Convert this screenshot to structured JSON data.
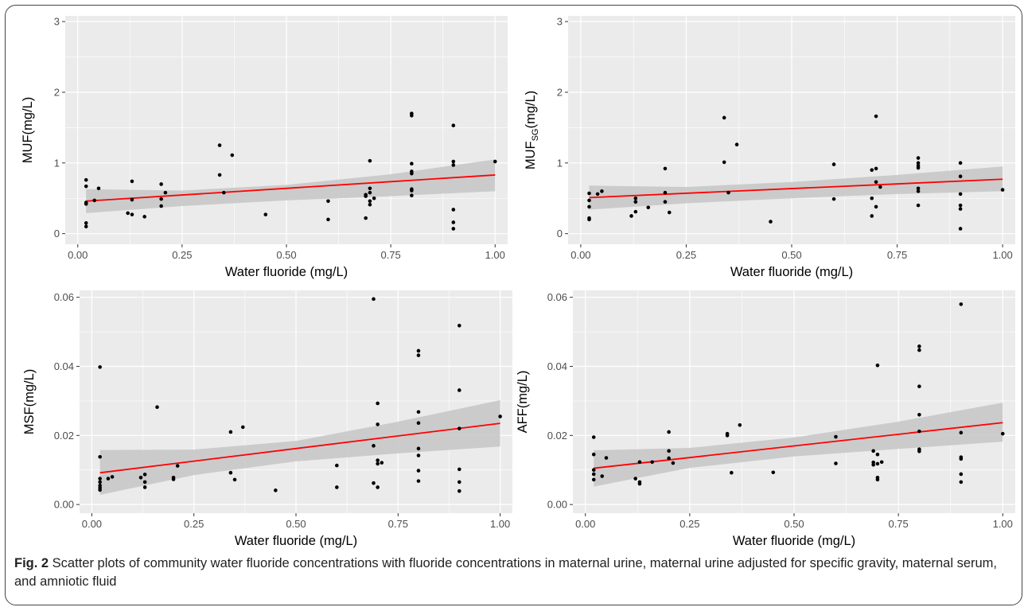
{
  "caption": {
    "label": "Fig. 2",
    "text": " Scatter plots of community water fluoride concentrations with fluoride concentrations in maternal urine, maternal urine adjusted for specific gravity, maternal serum, and amniotic fluid"
  },
  "colors": {
    "panel_bg": "#ebebeb",
    "grid": "#ffffff",
    "point": "#000000",
    "fit_line": "#ff0000",
    "band": "#c8c8c8"
  },
  "chart_data": [
    {
      "type": "scatter",
      "xlabel": "Water fluoride (mg/L)",
      "ylabel": "MUF(mg/L)",
      "xlim": [
        -0.03,
        1.03
      ],
      "ylim": [
        -0.15,
        3.08
      ],
      "xticks": [
        0.0,
        0.25,
        0.5,
        0.75,
        1.0
      ],
      "xtick_labels": [
        "0.00",
        "0.25",
        "0.50",
        "0.75",
        "1.00"
      ],
      "yticks": [
        0,
        1,
        2,
        3
      ],
      "ytick_labels": [
        "0",
        "1",
        "2",
        "3"
      ],
      "grid": true,
      "points": [
        [
          0.02,
          0.76
        ],
        [
          0.02,
          0.67
        ],
        [
          0.02,
          0.44
        ],
        [
          0.02,
          0.42
        ],
        [
          0.02,
          0.15
        ],
        [
          0.02,
          0.1
        ],
        [
          0.04,
          0.47
        ],
        [
          0.05,
          0.64
        ],
        [
          0.12,
          0.29
        ],
        [
          0.13,
          0.74
        ],
        [
          0.13,
          0.48
        ],
        [
          0.13,
          0.27
        ],
        [
          0.16,
          0.24
        ],
        [
          0.2,
          0.7
        ],
        [
          0.2,
          0.49
        ],
        [
          0.2,
          0.39
        ],
        [
          0.21,
          0.58
        ],
        [
          0.34,
          1.25
        ],
        [
          0.34,
          0.83
        ],
        [
          0.35,
          0.58
        ],
        [
          0.37,
          1.11
        ],
        [
          0.45,
          0.27
        ],
        [
          0.6,
          0.46
        ],
        [
          0.6,
          0.2
        ],
        [
          0.69,
          0.55
        ],
        [
          0.69,
          0.53
        ],
        [
          0.69,
          0.22
        ],
        [
          0.7,
          1.03
        ],
        [
          0.7,
          0.64
        ],
        [
          0.7,
          0.58
        ],
        [
          0.7,
          0.46
        ],
        [
          0.7,
          0.41
        ],
        [
          0.71,
          0.5
        ],
        [
          0.8,
          1.7
        ],
        [
          0.8,
          1.67
        ],
        [
          0.8,
          0.99
        ],
        [
          0.8,
          0.88
        ],
        [
          0.8,
          0.85
        ],
        [
          0.8,
          0.63
        ],
        [
          0.8,
          0.61
        ],
        [
          0.8,
          0.54
        ],
        [
          0.9,
          1.53
        ],
        [
          0.9,
          1.02
        ],
        [
          0.9,
          0.97
        ],
        [
          0.9,
          0.34
        ],
        [
          0.9,
          0.16
        ],
        [
          0.9,
          0.07
        ],
        [
          1.0,
          1.02
        ]
      ],
      "fit": {
        "x": [
          0.02,
          1.0
        ],
        "y": [
          0.46,
          0.83
        ]
      },
      "band": {
        "x": [
          0.02,
          0.25,
          0.5,
          0.75,
          1.0
        ],
        "lower": [
          0.29,
          0.39,
          0.47,
          0.53,
          0.6
        ],
        "upper": [
          0.63,
          0.61,
          0.69,
          0.84,
          1.05
        ]
      }
    },
    {
      "type": "scatter",
      "xlabel": "Water fluoride (mg/L)",
      "ylabel": "MUF",
      "ylabel_sub": "SG",
      "ylabel_suffix": "(mg/L)",
      "xlim": [
        -0.03,
        1.03
      ],
      "ylim": [
        -0.15,
        3.08
      ],
      "xticks": [
        0.0,
        0.25,
        0.5,
        0.75,
        1.0
      ],
      "xtick_labels": [
        "0.00",
        "0.25",
        "0.50",
        "0.75",
        "1.00"
      ],
      "yticks": [
        0,
        1,
        2,
        3
      ],
      "ytick_labels": [
        "0",
        "1",
        "2",
        "3"
      ],
      "grid": true,
      "points": [
        [
          0.02,
          0.57
        ],
        [
          0.02,
          0.47
        ],
        [
          0.02,
          0.38
        ],
        [
          0.02,
          0.22
        ],
        [
          0.02,
          0.2
        ],
        [
          0.04,
          0.56
        ],
        [
          0.05,
          0.6
        ],
        [
          0.12,
          0.25
        ],
        [
          0.13,
          0.5
        ],
        [
          0.13,
          0.45
        ],
        [
          0.13,
          0.31
        ],
        [
          0.16,
          0.37
        ],
        [
          0.2,
          0.92
        ],
        [
          0.2,
          0.58
        ],
        [
          0.2,
          0.45
        ],
        [
          0.21,
          0.3
        ],
        [
          0.34,
          1.64
        ],
        [
          0.34,
          1.01
        ],
        [
          0.35,
          0.58
        ],
        [
          0.37,
          1.26
        ],
        [
          0.45,
          0.17
        ],
        [
          0.6,
          0.98
        ],
        [
          0.6,
          0.49
        ],
        [
          0.69,
          0.9
        ],
        [
          0.69,
          0.5
        ],
        [
          0.69,
          0.25
        ],
        [
          0.7,
          1.66
        ],
        [
          0.7,
          0.92
        ],
        [
          0.7,
          0.73
        ],
        [
          0.7,
          0.38
        ],
        [
          0.71,
          0.66
        ],
        [
          0.8,
          1.07
        ],
        [
          0.8,
          1.0
        ],
        [
          0.8,
          0.96
        ],
        [
          0.8,
          0.93
        ],
        [
          0.8,
          0.64
        ],
        [
          0.8,
          0.6
        ],
        [
          0.8,
          0.4
        ],
        [
          0.9,
          1.0
        ],
        [
          0.9,
          0.81
        ],
        [
          0.9,
          0.56
        ],
        [
          0.9,
          0.4
        ],
        [
          0.9,
          0.35
        ],
        [
          0.9,
          0.07
        ],
        [
          1.0,
          0.62
        ]
      ],
      "fit": {
        "x": [
          0.02,
          1.0
        ],
        "y": [
          0.51,
          0.77
        ]
      },
      "band": {
        "x": [
          0.02,
          0.25,
          0.5,
          0.75,
          1.0
        ],
        "lower": [
          0.34,
          0.43,
          0.5,
          0.56,
          0.6
        ],
        "upper": [
          0.68,
          0.66,
          0.73,
          0.83,
          0.95
        ]
      }
    },
    {
      "type": "scatter",
      "xlabel": "Water fluoride (mg/L)",
      "ylabel": "MSF(mg/L)",
      "xlim": [
        -0.03,
        1.03
      ],
      "ylim": [
        -0.0025,
        0.062
      ],
      "xticks": [
        0.0,
        0.25,
        0.5,
        0.75,
        1.0
      ],
      "xtick_labels": [
        "0.00",
        "0.25",
        "0.50",
        "0.75",
        "1.00"
      ],
      "yticks": [
        0.0,
        0.02,
        0.04,
        0.06
      ],
      "ytick_labels": [
        "0.00",
        "0.02",
        "0.04",
        "0.06"
      ],
      "grid": true,
      "points": [
        [
          0.02,
          0.0398
        ],
        [
          0.02,
          0.0138
        ],
        [
          0.02,
          0.0075
        ],
        [
          0.02,
          0.0065
        ],
        [
          0.02,
          0.0055
        ],
        [
          0.02,
          0.0048
        ],
        [
          0.02,
          0.0042
        ],
        [
          0.04,
          0.0075
        ],
        [
          0.05,
          0.008
        ],
        [
          0.12,
          0.0078
        ],
        [
          0.13,
          0.0087
        ],
        [
          0.13,
          0.0065
        ],
        [
          0.13,
          0.005
        ],
        [
          0.16,
          0.0282
        ],
        [
          0.2,
          0.0078
        ],
        [
          0.2,
          0.0073
        ],
        [
          0.21,
          0.0112
        ],
        [
          0.34,
          0.021
        ],
        [
          0.34,
          0.0092
        ],
        [
          0.35,
          0.0072
        ],
        [
          0.37,
          0.0224
        ],
        [
          0.45,
          0.0041
        ],
        [
          0.6,
          0.0113
        ],
        [
          0.6,
          0.005
        ],
        [
          0.69,
          0.0595
        ],
        [
          0.69,
          0.017
        ],
        [
          0.69,
          0.0062
        ],
        [
          0.7,
          0.0293
        ],
        [
          0.7,
          0.0232
        ],
        [
          0.7,
          0.0128
        ],
        [
          0.7,
          0.0118
        ],
        [
          0.7,
          0.005
        ],
        [
          0.71,
          0.0121
        ],
        [
          0.8,
          0.0445
        ],
        [
          0.8,
          0.0432
        ],
        [
          0.8,
          0.0268
        ],
        [
          0.8,
          0.0236
        ],
        [
          0.8,
          0.0162
        ],
        [
          0.8,
          0.0142
        ],
        [
          0.8,
          0.0098
        ],
        [
          0.8,
          0.0068
        ],
        [
          0.9,
          0.0518
        ],
        [
          0.9,
          0.0331
        ],
        [
          0.9,
          0.022
        ],
        [
          0.9,
          0.0102
        ],
        [
          0.9,
          0.0065
        ],
        [
          0.9,
          0.0039
        ],
        [
          1.0,
          0.0255
        ]
      ],
      "fit": {
        "x": [
          0.02,
          1.0
        ],
        "y": [
          0.0092,
          0.0235
        ]
      },
      "band": {
        "x": [
          0.02,
          0.25,
          0.5,
          0.75,
          1.0
        ],
        "lower": [
          0.0028,
          0.0085,
          0.0125,
          0.0148,
          0.0168
        ],
        "upper": [
          0.0158,
          0.0159,
          0.0184,
          0.024,
          0.0302
        ]
      }
    },
    {
      "type": "scatter",
      "xlabel": "Water fluoride (mg/L)",
      "ylabel": "AFF(mg/L)",
      "xlim": [
        -0.03,
        1.03
      ],
      "ylim": [
        -0.0025,
        0.062
      ],
      "xticks": [
        0.0,
        0.25,
        0.5,
        0.75,
        1.0
      ],
      "xtick_labels": [
        "0.00",
        "0.25",
        "0.50",
        "0.75",
        "1.00"
      ],
      "yticks": [
        0.0,
        0.02,
        0.04,
        0.06
      ],
      "ytick_labels": [
        "0.00",
        "0.02",
        "0.04",
        "0.06"
      ],
      "grid": true,
      "points": [
        [
          0.02,
          0.0195
        ],
        [
          0.02,
          0.0145
        ],
        [
          0.02,
          0.01
        ],
        [
          0.02,
          0.0088
        ],
        [
          0.02,
          0.0072
        ],
        [
          0.04,
          0.0082
        ],
        [
          0.05,
          0.0135
        ],
        [
          0.12,
          0.0075
        ],
        [
          0.13,
          0.0123
        ],
        [
          0.13,
          0.0065
        ],
        [
          0.13,
          0.006
        ],
        [
          0.16,
          0.0123
        ],
        [
          0.2,
          0.021
        ],
        [
          0.2,
          0.0155
        ],
        [
          0.2,
          0.0134
        ],
        [
          0.21,
          0.012
        ],
        [
          0.34,
          0.0205
        ],
        [
          0.34,
          0.02
        ],
        [
          0.35,
          0.0092
        ],
        [
          0.37,
          0.023
        ],
        [
          0.45,
          0.0093
        ],
        [
          0.6,
          0.0196
        ],
        [
          0.6,
          0.0119
        ],
        [
          0.69,
          0.0155
        ],
        [
          0.69,
          0.0122
        ],
        [
          0.69,
          0.0115
        ],
        [
          0.7,
          0.0403
        ],
        [
          0.7,
          0.0145
        ],
        [
          0.7,
          0.0118
        ],
        [
          0.7,
          0.0078
        ],
        [
          0.7,
          0.0072
        ],
        [
          0.71,
          0.0123
        ],
        [
          0.8,
          0.0458
        ],
        [
          0.8,
          0.0447
        ],
        [
          0.8,
          0.0342
        ],
        [
          0.8,
          0.026
        ],
        [
          0.8,
          0.0212
        ],
        [
          0.8,
          0.016
        ],
        [
          0.8,
          0.0154
        ],
        [
          0.9,
          0.058
        ],
        [
          0.9,
          0.0208
        ],
        [
          0.9,
          0.0137
        ],
        [
          0.9,
          0.0132
        ],
        [
          0.9,
          0.0088
        ],
        [
          0.9,
          0.0065
        ],
        [
          1.0,
          0.0205
        ]
      ],
      "fit": {
        "x": [
          0.02,
          1.0
        ],
        "y": [
          0.0105,
          0.0237
        ]
      },
      "band": {
        "x": [
          0.02,
          0.25,
          0.5,
          0.75,
          1.0
        ],
        "lower": [
          0.0052,
          0.0106,
          0.0139,
          0.0161,
          0.0182
        ],
        "upper": [
          0.0157,
          0.0164,
          0.0194,
          0.024,
          0.0295
        ]
      }
    }
  ]
}
